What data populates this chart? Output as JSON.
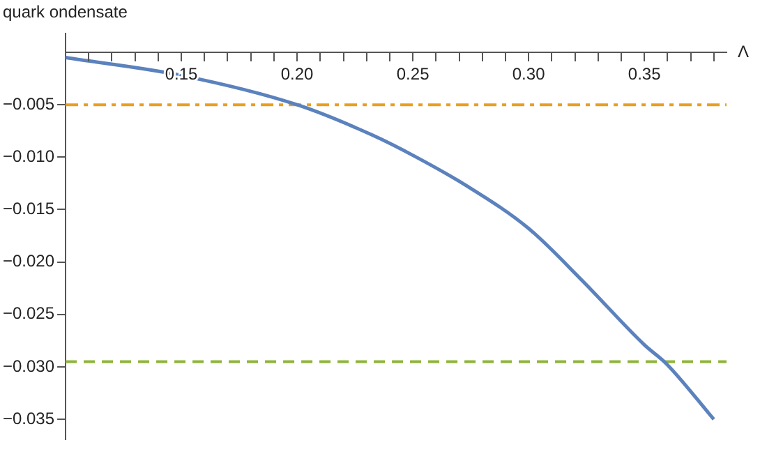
{
  "chart_data": {
    "type": "line",
    "xlabel": "Λ",
    "ylabel": "quark ondensate",
    "x": [
      0.1,
      0.15,
      0.2,
      0.2326,
      0.2507,
      0.273,
      0.3,
      0.3233,
      0.35,
      0.3595,
      0.38
    ],
    "series": [
      {
        "color": "#5b82bd",
        "values": [
          -0.0005,
          -0.0022,
          -0.005,
          -0.0079,
          -0.0099,
          -0.0127,
          -0.0168,
          -0.0218,
          -0.0279,
          -0.0297,
          -0.035
        ]
      }
    ],
    "xlim": [
      0.1,
      0.3855
    ],
    "ylim": [
      -0.0369,
      0.0018
    ],
    "xticks": [
      {
        "value": 0.11,
        "label": null
      },
      {
        "value": 0.12,
        "label": null
      },
      {
        "value": 0.13,
        "label": null
      },
      {
        "value": 0.14,
        "label": null
      },
      {
        "value": 0.15,
        "label": "0.15"
      },
      {
        "value": 0.16,
        "label": null
      },
      {
        "value": 0.17,
        "label": null
      },
      {
        "value": 0.18,
        "label": null
      },
      {
        "value": 0.19,
        "label": null
      },
      {
        "value": 0.2,
        "label": "0.20"
      },
      {
        "value": 0.21,
        "label": null
      },
      {
        "value": 0.22,
        "label": null
      },
      {
        "value": 0.23,
        "label": null
      },
      {
        "value": 0.24,
        "label": null
      },
      {
        "value": 0.25,
        "label": "0.25"
      },
      {
        "value": 0.26,
        "label": null
      },
      {
        "value": 0.27,
        "label": null
      },
      {
        "value": 0.28,
        "label": null
      },
      {
        "value": 0.29,
        "label": null
      },
      {
        "value": 0.3,
        "label": "0.30"
      },
      {
        "value": 0.31,
        "label": null
      },
      {
        "value": 0.32,
        "label": null
      },
      {
        "value": 0.33,
        "label": null
      },
      {
        "value": 0.34,
        "label": null
      },
      {
        "value": 0.35,
        "label": "0.35"
      },
      {
        "value": 0.36,
        "label": null
      },
      {
        "value": 0.37,
        "label": null
      },
      {
        "value": 0.38,
        "label": null
      }
    ],
    "yticks": [
      {
        "value": -0.005,
        "label": "−0.005"
      },
      {
        "value": -0.01,
        "label": "−0.010"
      },
      {
        "value": -0.015,
        "label": "−0.015"
      },
      {
        "value": -0.02,
        "label": "−0.020"
      },
      {
        "value": -0.025,
        "label": "−0.025"
      },
      {
        "value": -0.03,
        "label": "−0.030"
      },
      {
        "value": -0.035,
        "label": "−0.035"
      }
    ],
    "ref_lines": [
      {
        "axis": "y",
        "value": -0.005,
        "color": "#e8a020",
        "line_style": "dashdot"
      },
      {
        "axis": "y",
        "value": -0.0295,
        "color": "#8fb43a",
        "line_style": "dashed"
      }
    ],
    "grid": false,
    "legend": false,
    "marker": "none",
    "line_style": "solid"
  }
}
